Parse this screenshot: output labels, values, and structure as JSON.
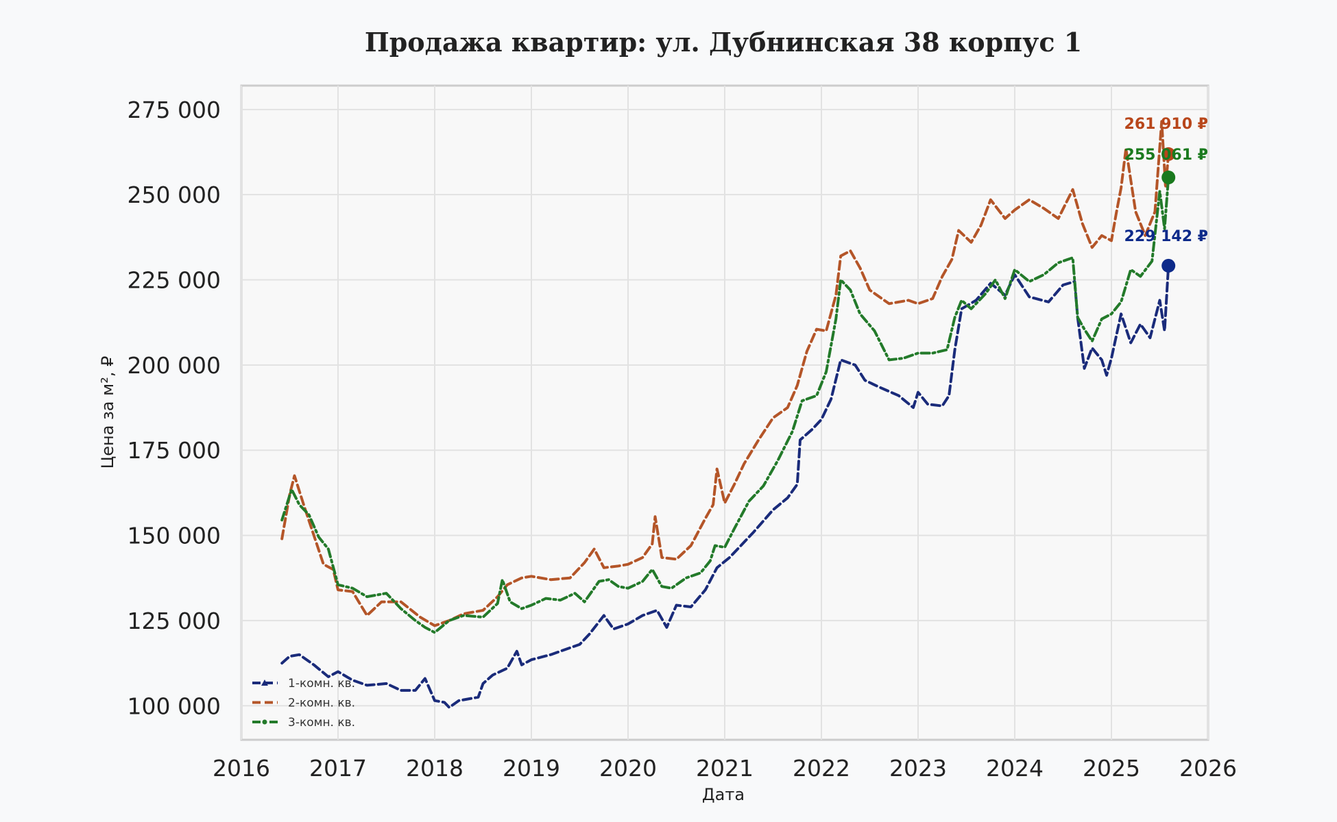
{
  "chart_data": {
    "type": "line",
    "title": "Продажа квартир: ул. Дубнинская 38 корпус 1",
    "xlabel": "Дата",
    "ylabel": "Цена за м², ₽",
    "xlim": [
      2016,
      2026
    ],
    "ylim": [
      90000,
      282000
    ],
    "x_ticks": [
      "2016",
      "2017",
      "2018",
      "2019",
      "2020",
      "2021",
      "2022",
      "2023",
      "2024",
      "2025",
      "2026"
    ],
    "y_ticks": [
      {
        "value": 100000,
        "label": "100 000"
      },
      {
        "value": 125000,
        "label": "125 000"
      },
      {
        "value": 150000,
        "label": "150 000"
      },
      {
        "value": 175000,
        "label": "175 000"
      },
      {
        "value": 200000,
        "label": "200 000"
      },
      {
        "value": 225000,
        "label": "225 000"
      },
      {
        "value": 250000,
        "label": "250 000"
      },
      {
        "value": 275000,
        "label": "275 000"
      }
    ],
    "grid": true,
    "legend_position": "bottom-left",
    "series": [
      {
        "name": "1-комн. кв.",
        "color": "#1a2b7a",
        "dot_color": "#0d2a8a",
        "dash": "12 6",
        "marker": "triangle",
        "end_label": "229 142 ₽",
        "points": [
          [
            2016.42,
            112500
          ],
          [
            2016.5,
            114500
          ],
          [
            2016.6,
            115000
          ],
          [
            2016.75,
            112000
          ],
          [
            2016.9,
            108500
          ],
          [
            2017.0,
            110000
          ],
          [
            2017.15,
            107500
          ],
          [
            2017.3,
            106000
          ],
          [
            2017.5,
            106500
          ],
          [
            2017.65,
            104500
          ],
          [
            2017.8,
            104500
          ],
          [
            2017.9,
            108000
          ],
          [
            2018.0,
            101500
          ],
          [
            2018.1,
            101000
          ],
          [
            2018.15,
            99500
          ],
          [
            2018.25,
            101500
          ],
          [
            2018.45,
            102500
          ],
          [
            2018.5,
            106500
          ],
          [
            2018.6,
            109000
          ],
          [
            2018.75,
            111000
          ],
          [
            2018.85,
            116000
          ],
          [
            2018.9,
            112000
          ],
          [
            2019.0,
            113500
          ],
          [
            2019.2,
            115000
          ],
          [
            2019.4,
            117000
          ],
          [
            2019.5,
            118000
          ],
          [
            2019.6,
            121000
          ],
          [
            2019.75,
            126500
          ],
          [
            2019.85,
            122500
          ],
          [
            2020.0,
            124000
          ],
          [
            2020.15,
            126500
          ],
          [
            2020.3,
            128000
          ],
          [
            2020.4,
            123000
          ],
          [
            2020.5,
            129500
          ],
          [
            2020.65,
            129000
          ],
          [
            2020.8,
            134000
          ],
          [
            2020.92,
            140500
          ],
          [
            2021.05,
            143500
          ],
          [
            2021.15,
            146500
          ],
          [
            2021.3,
            151000
          ],
          [
            2021.5,
            157500
          ],
          [
            2021.65,
            161000
          ],
          [
            2021.75,
            165000
          ],
          [
            2021.78,
            178000
          ],
          [
            2021.9,
            181000
          ],
          [
            2022.0,
            184000
          ],
          [
            2022.1,
            190000
          ],
          [
            2022.2,
            201500
          ],
          [
            2022.35,
            200000
          ],
          [
            2022.45,
            195500
          ],
          [
            2022.6,
            193500
          ],
          [
            2022.8,
            191000
          ],
          [
            2022.95,
            187500
          ],
          [
            2023.0,
            192000
          ],
          [
            2023.1,
            188500
          ],
          [
            2023.25,
            188000
          ],
          [
            2023.32,
            191000
          ],
          [
            2023.38,
            204500
          ],
          [
            2023.45,
            216500
          ],
          [
            2023.6,
            219000
          ],
          [
            2023.75,
            224000
          ],
          [
            2023.9,
            220500
          ],
          [
            2024.0,
            226500
          ],
          [
            2024.15,
            220000
          ],
          [
            2024.35,
            218500
          ],
          [
            2024.5,
            223500
          ],
          [
            2024.62,
            224500
          ],
          [
            2024.65,
            214000
          ],
          [
            2024.72,
            199000
          ],
          [
            2024.8,
            205000
          ],
          [
            2024.9,
            201500
          ],
          [
            2024.95,
            197000
          ],
          [
            2025.0,
            202000
          ],
          [
            2025.1,
            215000
          ],
          [
            2025.2,
            206500
          ],
          [
            2025.3,
            212000
          ],
          [
            2025.4,
            208000
          ],
          [
            2025.5,
            219000
          ],
          [
            2025.55,
            210000
          ],
          [
            2025.59,
            229142
          ]
        ]
      },
      {
        "name": "2-комн. кв.",
        "color": "#b45528",
        "dot_color": "#b8461a",
        "dash": "12 6",
        "marker": "none",
        "end_label": "261 910 ₽",
        "points": [
          [
            2016.42,
            149000
          ],
          [
            2016.5,
            162000
          ],
          [
            2016.55,
            167500
          ],
          [
            2016.65,
            158500
          ],
          [
            2016.75,
            150000
          ],
          [
            2016.85,
            141500
          ],
          [
            2016.95,
            140000
          ],
          [
            2017.0,
            134000
          ],
          [
            2017.15,
            133500
          ],
          [
            2017.3,
            126500
          ],
          [
            2017.45,
            130500
          ],
          [
            2017.65,
            130500
          ],
          [
            2017.85,
            126000
          ],
          [
            2018.0,
            123500
          ],
          [
            2018.15,
            125000
          ],
          [
            2018.3,
            127000
          ],
          [
            2018.5,
            128000
          ],
          [
            2018.65,
            132000
          ],
          [
            2018.75,
            135500
          ],
          [
            2018.9,
            137500
          ],
          [
            2019.0,
            138000
          ],
          [
            2019.2,
            137000
          ],
          [
            2019.4,
            137500
          ],
          [
            2019.55,
            142000
          ],
          [
            2019.65,
            146000
          ],
          [
            2019.75,
            140500
          ],
          [
            2019.9,
            141000
          ],
          [
            2020.0,
            141500
          ],
          [
            2020.15,
            143500
          ],
          [
            2020.25,
            147500
          ],
          [
            2020.28,
            155500
          ],
          [
            2020.35,
            143500
          ],
          [
            2020.5,
            143000
          ],
          [
            2020.65,
            147000
          ],
          [
            2020.8,
            155000
          ],
          [
            2020.88,
            159000
          ],
          [
            2020.92,
            169500
          ],
          [
            2021.0,
            159500
          ],
          [
            2021.1,
            165000
          ],
          [
            2021.2,
            171000
          ],
          [
            2021.35,
            178000
          ],
          [
            2021.5,
            184500
          ],
          [
            2021.65,
            187500
          ],
          [
            2021.75,
            194000
          ],
          [
            2021.85,
            204000
          ],
          [
            2021.95,
            210500
          ],
          [
            2022.05,
            210000
          ],
          [
            2022.15,
            220500
          ],
          [
            2022.2,
            232000
          ],
          [
            2022.3,
            233500
          ],
          [
            2022.4,
            228500
          ],
          [
            2022.5,
            222000
          ],
          [
            2022.7,
            218000
          ],
          [
            2022.9,
            219000
          ],
          [
            2023.0,
            218000
          ],
          [
            2023.15,
            219500
          ],
          [
            2023.25,
            226000
          ],
          [
            2023.35,
            231000
          ],
          [
            2023.42,
            239500
          ],
          [
            2023.55,
            236000
          ],
          [
            2023.65,
            241000
          ],
          [
            2023.75,
            248500
          ],
          [
            2023.9,
            243000
          ],
          [
            2024.0,
            245500
          ],
          [
            2024.15,
            248500
          ],
          [
            2024.3,
            246000
          ],
          [
            2024.45,
            243000
          ],
          [
            2024.6,
            251500
          ],
          [
            2024.7,
            241500
          ],
          [
            2024.8,
            234500
          ],
          [
            2024.9,
            238000
          ],
          [
            2025.0,
            236500
          ],
          [
            2025.05,
            244500
          ],
          [
            2025.1,
            252000
          ],
          [
            2025.15,
            263500
          ],
          [
            2025.25,
            245000
          ],
          [
            2025.35,
            238000
          ],
          [
            2025.45,
            245000
          ],
          [
            2025.52,
            271500
          ],
          [
            2025.56,
            252000
          ],
          [
            2025.59,
            261910
          ]
        ]
      },
      {
        "name": "3-комн. кв.",
        "color": "#237a2a",
        "dot_color": "#1a7a1e",
        "dash": "12 5 3 5",
        "marker": "dot",
        "end_label": "255 061 ₽",
        "points": [
          [
            2016.42,
            154500
          ],
          [
            2016.52,
            163500
          ],
          [
            2016.6,
            159000
          ],
          [
            2016.7,
            156000
          ],
          [
            2016.8,
            149500
          ],
          [
            2016.9,
            146000
          ],
          [
            2017.0,
            135500
          ],
          [
            2017.15,
            134500
          ],
          [
            2017.3,
            132000
          ],
          [
            2017.5,
            133000
          ],
          [
            2017.65,
            128500
          ],
          [
            2017.8,
            125000
          ],
          [
            2017.9,
            123000
          ],
          [
            2018.0,
            121500
          ],
          [
            2018.15,
            125000
          ],
          [
            2018.3,
            126500
          ],
          [
            2018.5,
            126000
          ],
          [
            2018.65,
            130000
          ],
          [
            2018.7,
            137000
          ],
          [
            2018.78,
            130500
          ],
          [
            2018.9,
            128500
          ],
          [
            2019.0,
            129500
          ],
          [
            2019.15,
            131500
          ],
          [
            2019.3,
            131000
          ],
          [
            2019.45,
            133000
          ],
          [
            2019.55,
            130500
          ],
          [
            2019.7,
            136500
          ],
          [
            2019.8,
            137000
          ],
          [
            2019.9,
            135000
          ],
          [
            2020.0,
            134500
          ],
          [
            2020.15,
            136500
          ],
          [
            2020.25,
            140000
          ],
          [
            2020.35,
            135000
          ],
          [
            2020.45,
            134500
          ],
          [
            2020.6,
            137500
          ],
          [
            2020.75,
            139000
          ],
          [
            2020.85,
            142500
          ],
          [
            2020.9,
            147000
          ],
          [
            2021.0,
            146500
          ],
          [
            2021.1,
            152000
          ],
          [
            2021.25,
            160000
          ],
          [
            2021.4,
            164500
          ],
          [
            2021.55,
            172000
          ],
          [
            2021.7,
            180500
          ],
          [
            2021.8,
            189500
          ],
          [
            2021.95,
            191000
          ],
          [
            2022.05,
            198000
          ],
          [
            2022.15,
            213500
          ],
          [
            2022.2,
            225000
          ],
          [
            2022.3,
            222000
          ],
          [
            2022.4,
            215000
          ],
          [
            2022.55,
            210000
          ],
          [
            2022.7,
            201500
          ],
          [
            2022.85,
            202000
          ],
          [
            2023.0,
            203500
          ],
          [
            2023.15,
            203500
          ],
          [
            2023.3,
            204500
          ],
          [
            2023.38,
            214000
          ],
          [
            2023.45,
            219000
          ],
          [
            2023.55,
            216500
          ],
          [
            2023.7,
            221000
          ],
          [
            2023.8,
            225000
          ],
          [
            2023.9,
            219500
          ],
          [
            2024.0,
            228000
          ],
          [
            2024.15,
            224500
          ],
          [
            2024.3,
            226500
          ],
          [
            2024.45,
            230000
          ],
          [
            2024.6,
            231500
          ],
          [
            2024.65,
            214000
          ],
          [
            2024.72,
            210500
          ],
          [
            2024.8,
            207000
          ],
          [
            2024.9,
            213500
          ],
          [
            2025.0,
            215000
          ],
          [
            2025.1,
            218500
          ],
          [
            2025.2,
            228000
          ],
          [
            2025.3,
            226000
          ],
          [
            2025.42,
            230500
          ],
          [
            2025.5,
            251000
          ],
          [
            2025.55,
            240000
          ],
          [
            2025.59,
            255061
          ]
        ]
      }
    ]
  }
}
